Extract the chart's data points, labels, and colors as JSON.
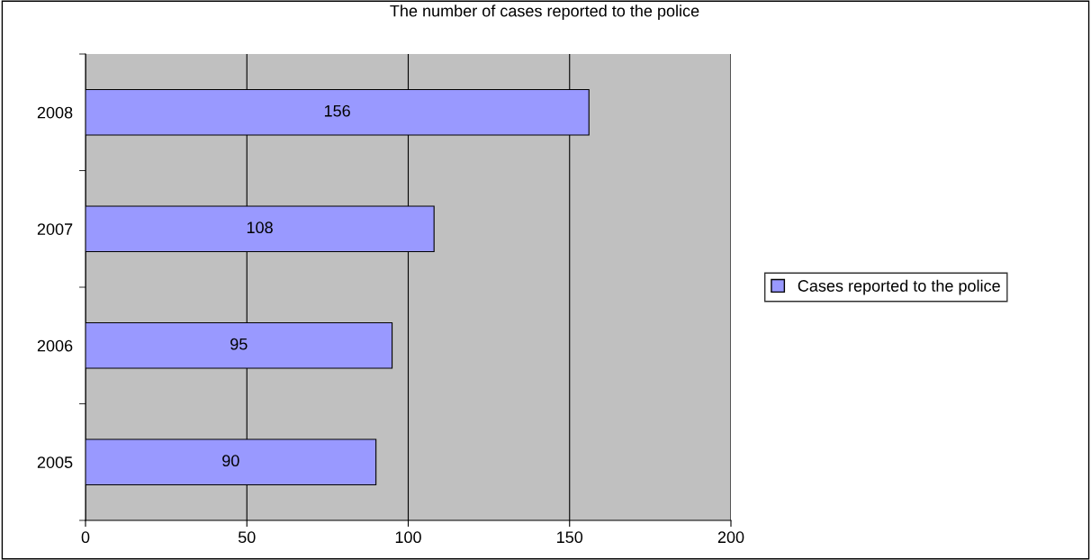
{
  "chart_data": {
    "type": "bar",
    "orientation": "horizontal",
    "title": "The number of cases reported to the police",
    "categories": [
      "2008",
      "2007",
      "2006",
      "2005"
    ],
    "series": [
      {
        "name": "Cases reported to the police",
        "color": "#9999ff",
        "values": [
          156,
          108,
          95,
          90
        ]
      }
    ],
    "xlim": [
      0,
      200
    ],
    "xticks": [
      0,
      50,
      100,
      150,
      200
    ],
    "grid": "x",
    "legend": "right",
    "data_labels": true
  }
}
